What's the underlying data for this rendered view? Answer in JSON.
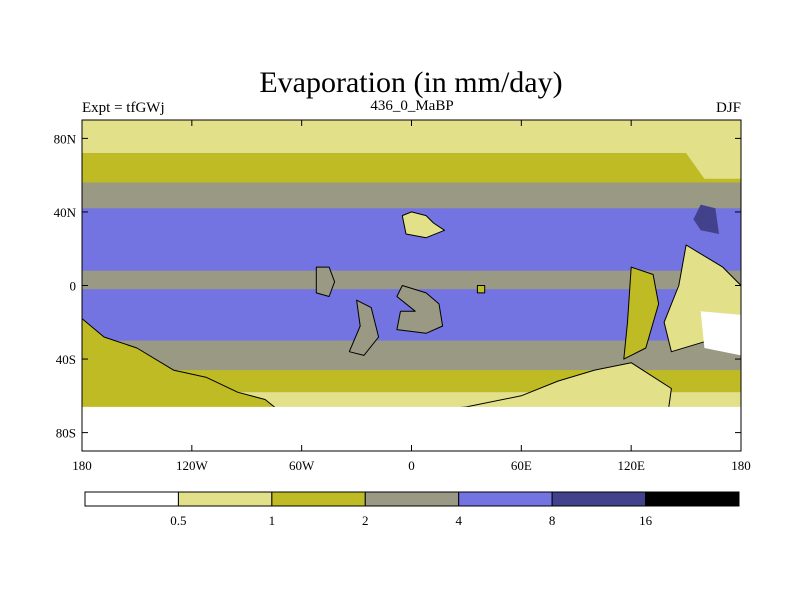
{
  "chart_data": {
    "type": "heatmap",
    "title": "Evaporation (in mm/day)",
    "subtitle_left": "Expt = tfGWj",
    "subtitle_center": "436_0_MaBP",
    "subtitle_right": "DJF",
    "x_range": [
      -180,
      180
    ],
    "y_range": [
      -90,
      90
    ],
    "x_ticks": [
      {
        "value": -180,
        "label": "180"
      },
      {
        "value": -120,
        "label": "120W"
      },
      {
        "value": -60,
        "label": "60W"
      },
      {
        "value": 0,
        "label": "0"
      },
      {
        "value": 60,
        "label": "60E"
      },
      {
        "value": 120,
        "label": "120E"
      },
      {
        "value": 180,
        "label": "180"
      }
    ],
    "y_ticks": [
      {
        "value": 80,
        "label": "80N"
      },
      {
        "value": 40,
        "label": "40N"
      },
      {
        "value": 0,
        "label": "0"
      },
      {
        "value": -40,
        "label": "40S"
      },
      {
        "value": -80,
        "label": "80S"
      }
    ],
    "colorbar": {
      "levels": [
        "0.5",
        "1",
        "2",
        "4",
        "8",
        "16"
      ],
      "colors": [
        "#ffffff",
        "#e3e08a",
        "#bfbb24",
        "#9a9a84",
        "#7373e2",
        "#42428c",
        "#000000"
      ]
    },
    "zonal_bands": [
      {
        "lat_min": 72,
        "lat_max": 90,
        "class": 1
      },
      {
        "lat_min": 56,
        "lat_max": 72,
        "class": 2
      },
      {
        "lat_min": 42,
        "lat_max": 56,
        "class": 3
      },
      {
        "lat_min": 8,
        "lat_max": 42,
        "class": 4
      },
      {
        "lat_min": -2,
        "lat_max": 8,
        "class": 3
      },
      {
        "lat_min": -30,
        "lat_max": -2,
        "class": 4
      },
      {
        "lat_min": -46,
        "lat_max": -30,
        "class": 3
      },
      {
        "lat_min": -58,
        "lat_max": -46,
        "class": 2
      },
      {
        "lat_min": -66,
        "lat_max": -58,
        "class": 1
      },
      {
        "lat_min": -90,
        "lat_max": -66,
        "class": 0
      }
    ],
    "regions": [
      {
        "name": "northern-continent",
        "class": 1,
        "outline": true,
        "points": [
          [
            -5,
            38
          ],
          [
            0,
            40
          ],
          [
            8,
            38
          ],
          [
            12,
            34
          ],
          [
            18,
            30
          ],
          [
            8,
            26
          ],
          [
            -3,
            28
          ]
        ]
      },
      {
        "name": "equatorial-island-west",
        "class": 3,
        "outline": true,
        "points": [
          [
            -52,
            10
          ],
          [
            -45,
            10
          ],
          [
            -42,
            2
          ],
          [
            -45,
            -6
          ],
          [
            -52,
            -4
          ]
        ]
      },
      {
        "name": "equatorial-island-mid",
        "class": 3,
        "outline": true,
        "points": [
          [
            -30,
            -8
          ],
          [
            -22,
            -12
          ],
          [
            -18,
            -28
          ],
          [
            -26,
            -38
          ],
          [
            -34,
            -36
          ],
          [
            -28,
            -22
          ]
        ]
      },
      {
        "name": "equatorial-island-east",
        "class": 3,
        "outline": true,
        "points": [
          [
            -5,
            0
          ],
          [
            8,
            -4
          ],
          [
            15,
            -10
          ],
          [
            17,
            -22
          ],
          [
            8,
            -26
          ],
          [
            -8,
            -24
          ],
          [
            -6,
            -14
          ],
          [
            2,
            -14
          ],
          [
            -8,
            -6
          ]
        ]
      },
      {
        "name": "small-island-east",
        "class": 2,
        "outline": true,
        "points": [
          [
            36,
            0
          ],
          [
            40,
            0
          ],
          [
            40,
            -4
          ],
          [
            36,
            -4
          ]
        ]
      },
      {
        "name": "pangea-east-coast",
        "class": 2,
        "outline": true,
        "points": [
          [
            120,
            10
          ],
          [
            132,
            6
          ],
          [
            135,
            -10
          ],
          [
            128,
            -34
          ],
          [
            116,
            -40
          ],
          [
            118,
            -20
          ]
        ]
      },
      {
        "name": "eastern-land",
        "class": 1,
        "outline": true,
        "points": [
          [
            150,
            22
          ],
          [
            170,
            10
          ],
          [
            180,
            0
          ],
          [
            180,
            -20
          ],
          [
            162,
            -30
          ],
          [
            142,
            -36
          ],
          [
            138,
            -20
          ],
          [
            146,
            0
          ]
        ]
      },
      {
        "name": "eastern-land-south",
        "class": 0,
        "outline": false,
        "points": [
          [
            158,
            -14
          ],
          [
            180,
            -16
          ],
          [
            180,
            -38
          ],
          [
            160,
            -34
          ]
        ]
      },
      {
        "name": "gondwana-west",
        "class": 2,
        "outline": true,
        "points": [
          [
            -180,
            -18
          ],
          [
            -168,
            -28
          ],
          [
            -150,
            -34
          ],
          [
            -130,
            -46
          ],
          [
            -112,
            -50
          ],
          [
            -95,
            -58
          ],
          [
            -80,
            -62
          ],
          [
            -70,
            -70
          ],
          [
            -75,
            -82
          ],
          [
            -100,
            -84
          ],
          [
            -140,
            -82
          ],
          [
            -180,
            -80
          ]
        ]
      },
      {
        "name": "gondwana-east",
        "class": 1,
        "outline": true,
        "points": [
          [
            -72,
            -74
          ],
          [
            -40,
            -72
          ],
          [
            -10,
            -70
          ],
          [
            30,
            -66
          ],
          [
            60,
            -60
          ],
          [
            80,
            -52
          ],
          [
            100,
            -46
          ],
          [
            120,
            -42
          ],
          [
            142,
            -56
          ],
          [
            140,
            -70
          ],
          [
            120,
            -76
          ],
          [
            60,
            -80
          ],
          [
            0,
            -82
          ],
          [
            -60,
            -84
          ],
          [
            -75,
            -82
          ]
        ]
      },
      {
        "name": "south-polar",
        "class": 0,
        "outline": false,
        "points": [
          [
            -180,
            -90
          ],
          [
            180,
            -90
          ],
          [
            180,
            -66
          ],
          [
            -180,
            -66
          ]
        ]
      },
      {
        "name": "arctic-island",
        "class": 1,
        "outline": false,
        "points": [
          [
            150,
            72
          ],
          [
            170,
            84
          ],
          [
            180,
            86
          ],
          [
            180,
            58
          ],
          [
            160,
            58
          ]
        ]
      },
      {
        "name": "northeast-coast",
        "class": 5,
        "outline": false,
        "points": [
          [
            158,
            44
          ],
          [
            166,
            42
          ],
          [
            168,
            28
          ],
          [
            158,
            30
          ],
          [
            154,
            36
          ]
        ]
      }
    ]
  }
}
